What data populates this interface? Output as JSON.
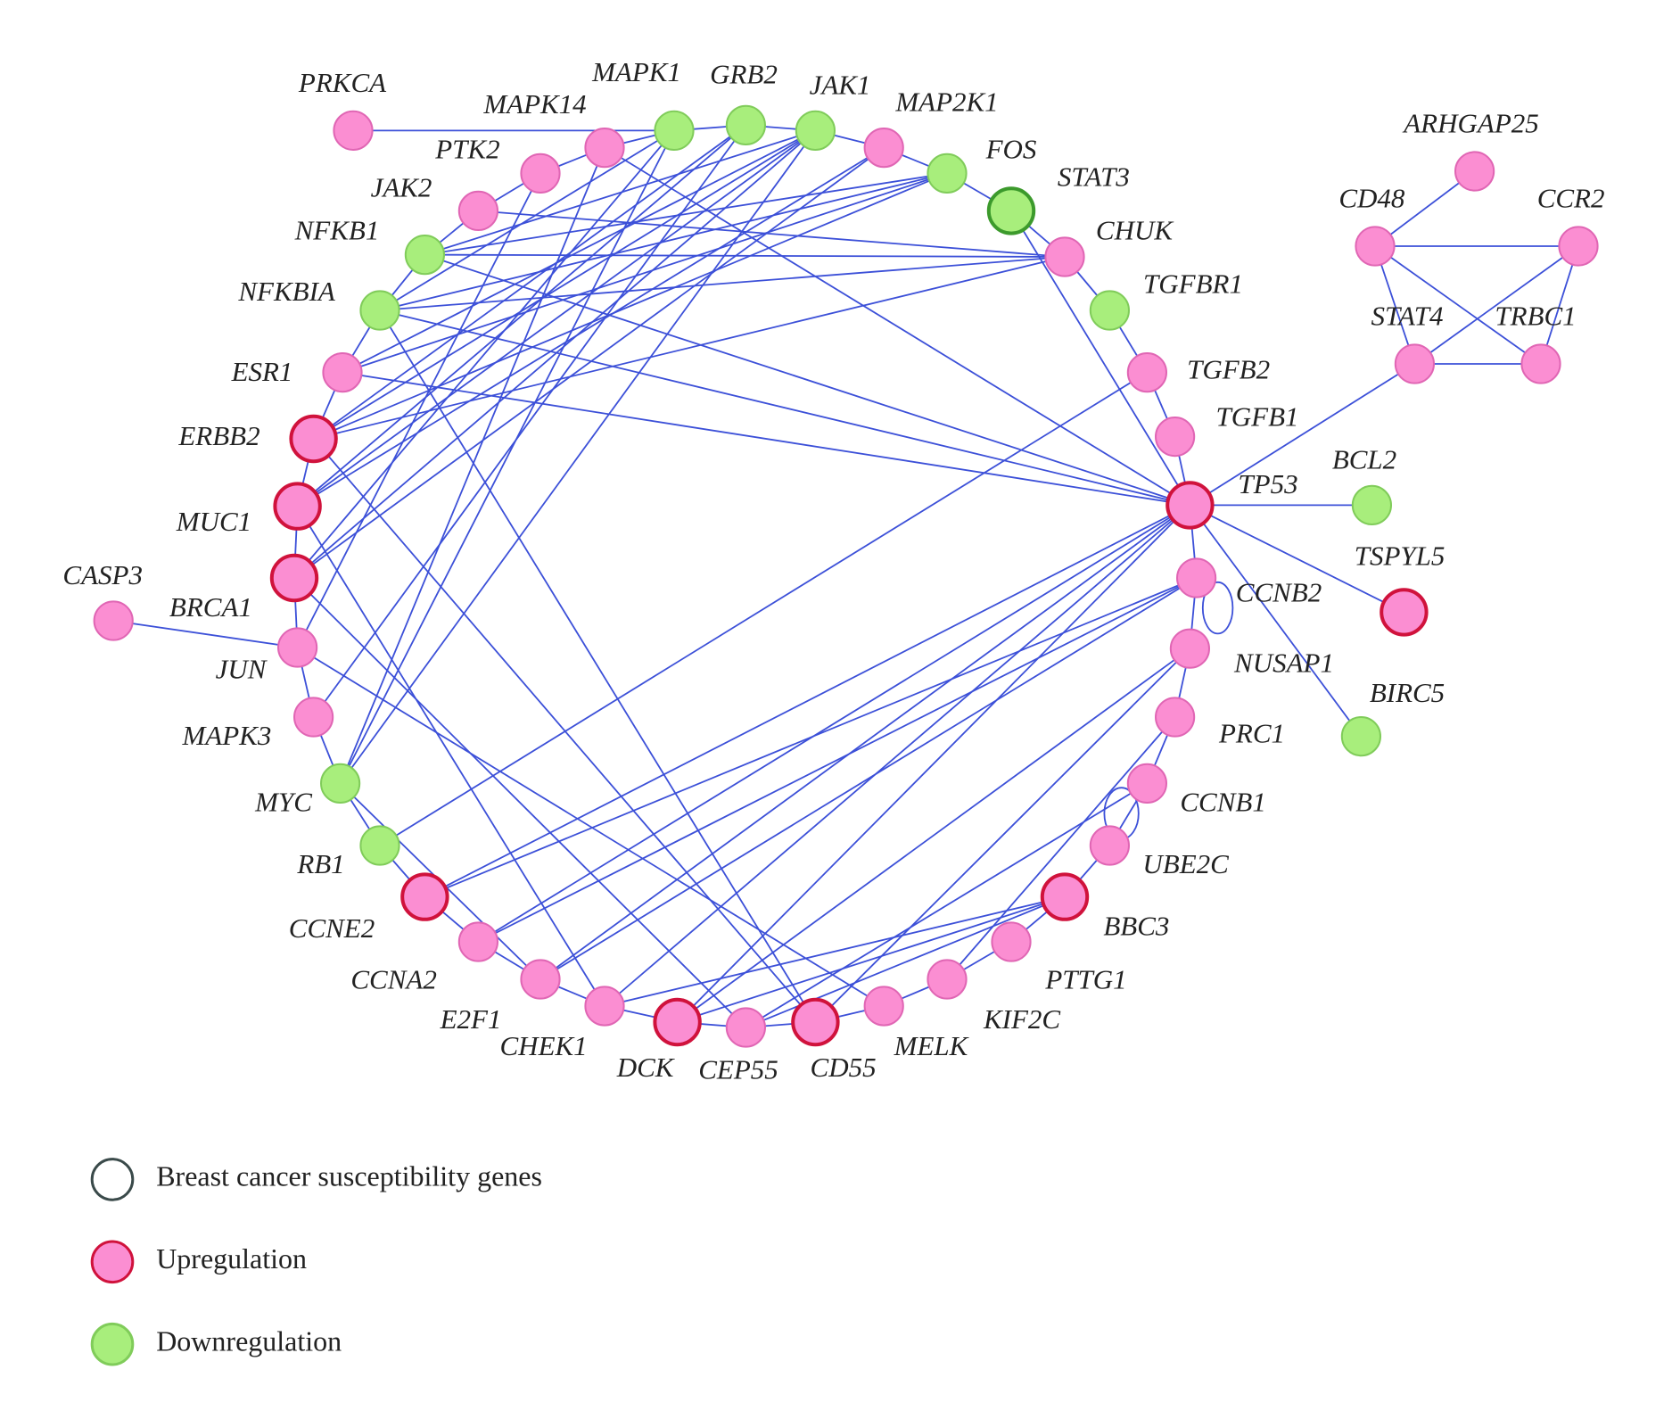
{
  "nodes": [
    {
      "label": "PRKCA",
      "fill": "#fb8ed2",
      "stroke": "#e066b4"
    },
    {
      "label": "MAPK14",
      "fill": "#fb8ed2",
      "stroke": "#e066b4"
    },
    {
      "label": "MAPK1",
      "fill": "#a8ee7c",
      "stroke": "#80cc5a"
    },
    {
      "label": "GRB2",
      "fill": "#a8ee7c",
      "stroke": "#80cc5a"
    },
    {
      "label": "JAK1",
      "fill": "#a8ee7c",
      "stroke": "#80cc5a"
    },
    {
      "label": "MAP2K1",
      "fill": "#fb8ed2",
      "stroke": "#e066b4"
    },
    {
      "label": "PTK2",
      "fill": "#fb8ed2",
      "stroke": "#e066b4"
    },
    {
      "label": "FOS",
      "fill": "#a8ee7c",
      "stroke": "#80cc5a"
    },
    {
      "label": "JAK2",
      "fill": "#fb8ed2",
      "stroke": "#e066b4"
    },
    {
      "label": "STAT3",
      "fill": "#a8ee7c",
      "stroke": "#3c9a2c"
    },
    {
      "label": "NFKB1",
      "fill": "#a8ee7c",
      "stroke": "#80cc5a"
    },
    {
      "label": "CHUK",
      "fill": "#fb8ed2",
      "stroke": "#e066b4"
    },
    {
      "label": "NFKBIA",
      "fill": "#a8ee7c",
      "stroke": "#80cc5a"
    },
    {
      "label": "TGFBR1",
      "fill": "#a8ee7c",
      "stroke": "#80cc5a"
    },
    {
      "label": "ESR1",
      "fill": "#fb8ed2",
      "stroke": "#e066b4"
    },
    {
      "label": "TGFB2",
      "fill": "#fb8ed2",
      "stroke": "#e066b4"
    },
    {
      "label": "ERBB2",
      "fill": "#fb8ed2",
      "stroke": "#d0123c"
    },
    {
      "label": "TGFB1",
      "fill": "#fb8ed2",
      "stroke": "#e066b4"
    },
    {
      "label": "TP53",
      "fill": "#fb8ed2",
      "stroke": "#d0123c"
    },
    {
      "label": "MUC1",
      "fill": "#fb8ed2",
      "stroke": "#d0123c"
    },
    {
      "label": "BCL2",
      "fill": "#a8ee7c",
      "stroke": "#80cc5a"
    },
    {
      "label": "CCNB2",
      "fill": "#fb8ed2",
      "stroke": "#e066b4"
    },
    {
      "label": "TSPYL5",
      "fill": "#fb8ed2",
      "stroke": "#d0123c"
    },
    {
      "label": "BRCA1",
      "fill": "#fb8ed2",
      "stroke": "#d0123c"
    },
    {
      "label": "CASP3",
      "fill": "#fb8ed2",
      "stroke": "#e066b4"
    },
    {
      "label": "NUSAP1",
      "fill": "#fb8ed2",
      "stroke": "#e066b4"
    },
    {
      "label": "JUN",
      "fill": "#fb8ed2",
      "stroke": "#e066b4"
    },
    {
      "label": "MAPK3",
      "fill": "#fb8ed2",
      "stroke": "#e066b4"
    },
    {
      "label": "PRC1",
      "fill": "#fb8ed2",
      "stroke": "#e066b4"
    },
    {
      "label": "BIRC5",
      "fill": "#a8ee7c",
      "stroke": "#80cc5a"
    },
    {
      "label": "MYC",
      "fill": "#a8ee7c",
      "stroke": "#80cc5a"
    },
    {
      "label": "CCNB1",
      "fill": "#fb8ed2",
      "stroke": "#e066b4"
    },
    {
      "label": "RB1",
      "fill": "#a8ee7c",
      "stroke": "#80cc5a"
    },
    {
      "label": "UBE2C",
      "fill": "#fb8ed2",
      "stroke": "#e066b4"
    },
    {
      "label": "CCNE2",
      "fill": "#fb8ed2",
      "stroke": "#d0123c"
    },
    {
      "label": "BBC3",
      "fill": "#fb8ed2",
      "stroke": "#d0123c"
    },
    {
      "label": "CCNA2",
      "fill": "#fb8ed2",
      "stroke": "#e066b4"
    },
    {
      "label": "PTTG1",
      "fill": "#fb8ed2",
      "stroke": "#e066b4"
    },
    {
      "label": "E2F1",
      "fill": "#fb8ed2",
      "stroke": "#e066b4"
    },
    {
      "label": "KIF2C",
      "fill": "#fb8ed2",
      "stroke": "#e066b4"
    },
    {
      "label": "CHEK1",
      "fill": "#fb8ed2",
      "stroke": "#e066b4"
    },
    {
      "label": "MELK",
      "fill": "#fb8ed2",
      "stroke": "#e066b4"
    },
    {
      "label": "DCK",
      "fill": "#fb8ed2",
      "stroke": "#d0123c"
    },
    {
      "label": "CEP55",
      "fill": "#fb8ed2",
      "stroke": "#e066b4"
    },
    {
      "label": "CD55",
      "fill": "#fb8ed2",
      "stroke": "#d0123c"
    },
    {
      "label": "ARHGAP25",
      "fill": "#fb8ed2",
      "stroke": "#e066b4"
    },
    {
      "label": "CD48",
      "fill": "#fb8ed2",
      "stroke": "#e066b4"
    },
    {
      "label": "CCR2",
      "fill": "#fb8ed2",
      "stroke": "#e066b4"
    },
    {
      "label": "STAT4",
      "fill": "#fb8ed2",
      "stroke": "#e066b4"
    },
    {
      "label": "TRBC1",
      "fill": "#fb8ed2",
      "stroke": "#e066b4"
    }
  ],
  "legend": [
    {
      "label": "Breast cancer susceptibility genes",
      "fill": "#ffffff",
      "stroke": "#3a4a4a"
    },
    {
      "label": "Upregulation",
      "fill": "#fb8ed2",
      "stroke": "#d0123c"
    },
    {
      "label": "Downregulation",
      "fill": "#a8ee7c",
      "stroke": "#80cc5a"
    }
  ]
}
